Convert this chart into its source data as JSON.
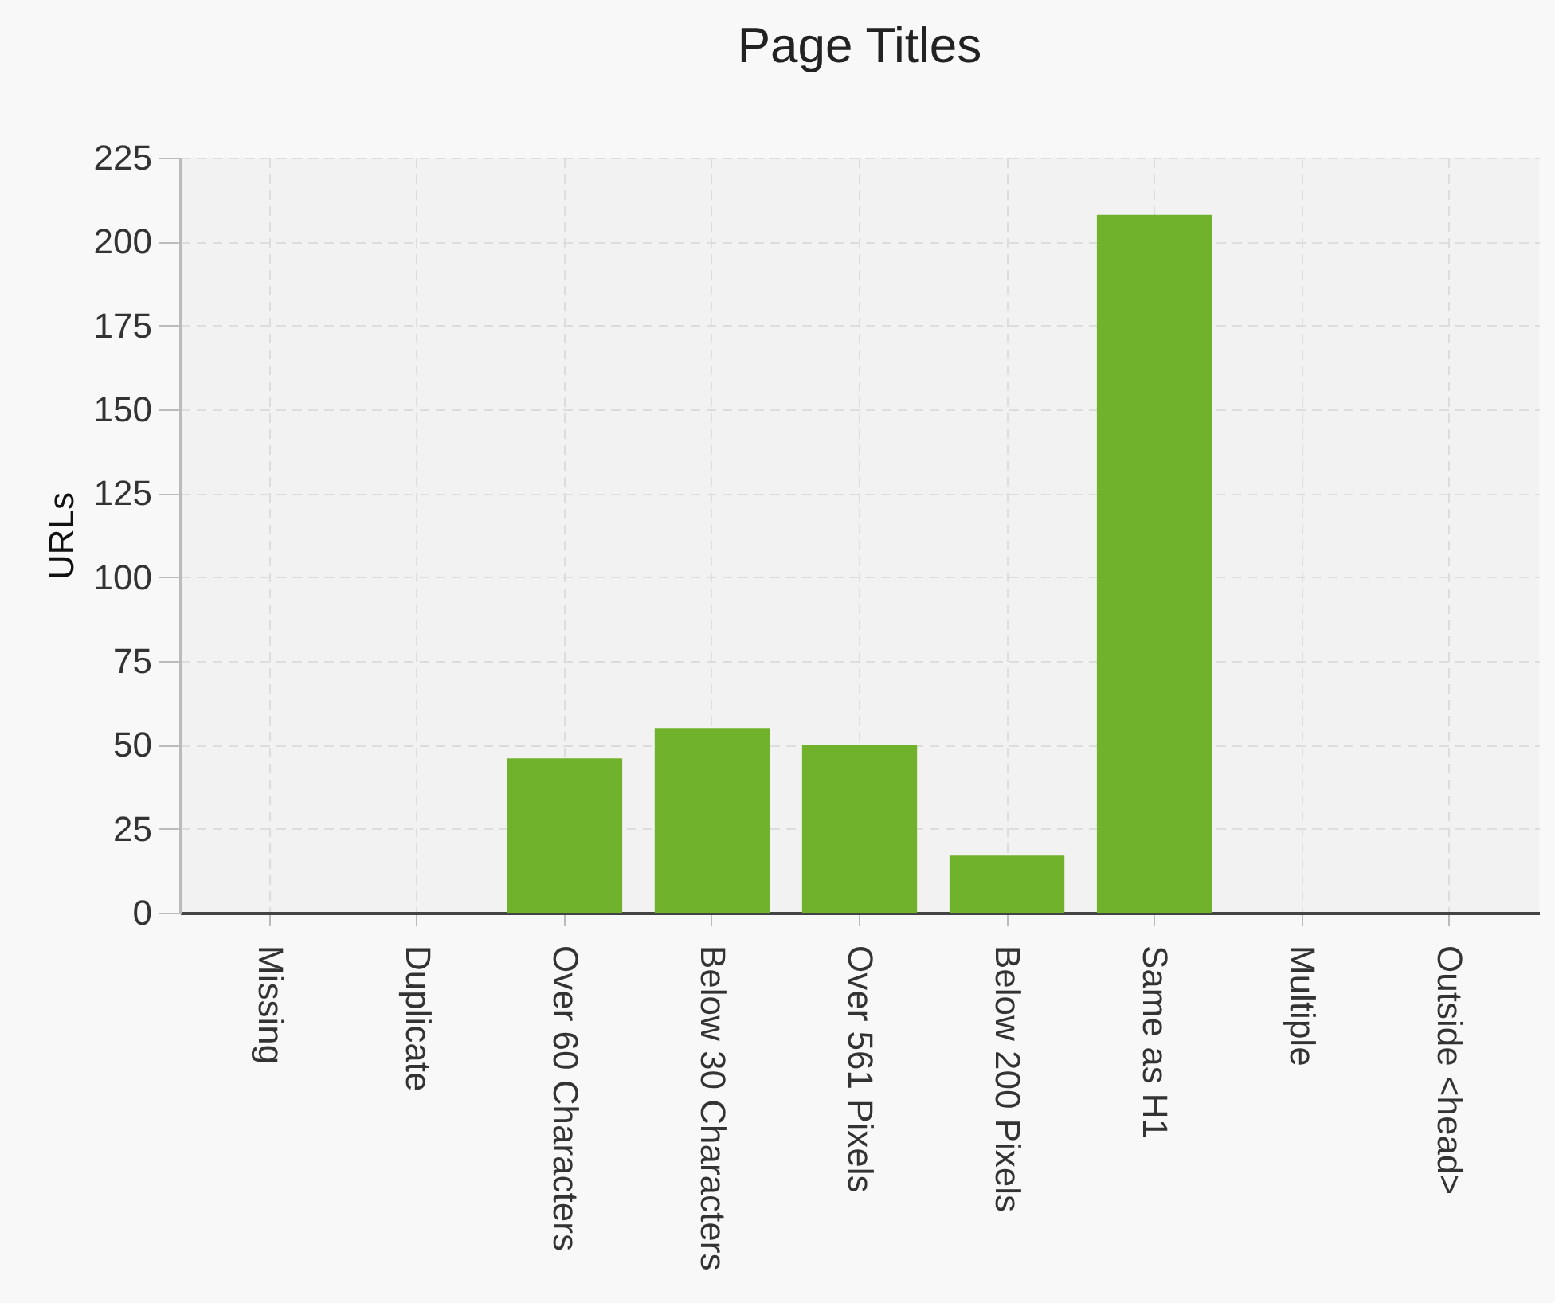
{
  "chart_data": {
    "type": "bar",
    "title": "Page Titles",
    "ylabel": "URLs",
    "categories": [
      "Missing",
      "Duplicate",
      "Over 60 Characters",
      "Below 30 Characters",
      "Over 561 Pixels",
      "Below 200 Pixels",
      "Same as H1",
      "Multiple",
      "Outside <head>"
    ],
    "values": [
      0,
      0,
      46,
      55,
      50,
      17,
      208,
      0,
      0
    ],
    "color": "#70b22c",
    "ylim": [
      0,
      225
    ],
    "yticks": [
      0,
      25,
      50,
      75,
      100,
      125,
      150,
      175,
      200,
      225
    ],
    "grid": true
  }
}
